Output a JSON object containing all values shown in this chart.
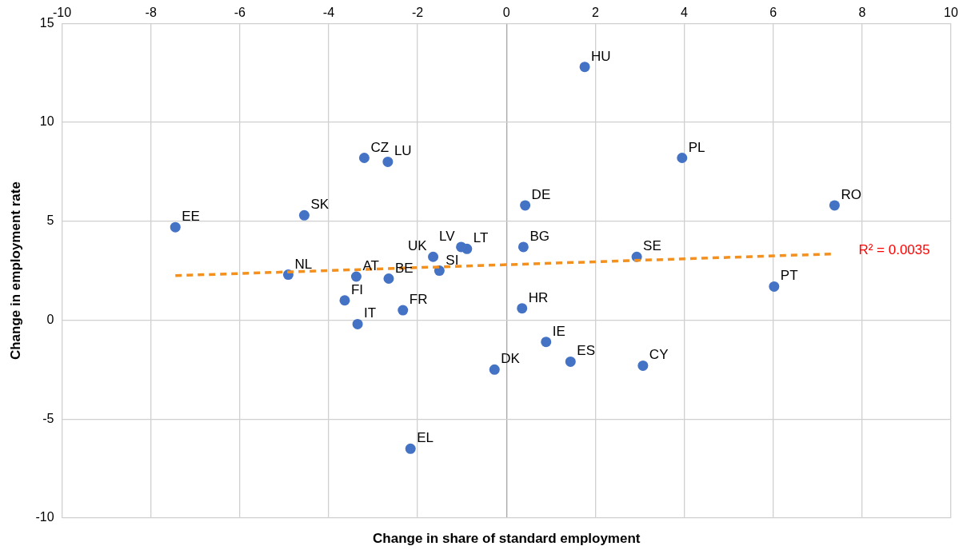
{
  "chart_data": {
    "type": "scatter",
    "xlabel": "Change in share of standard employment",
    "ylabel": "Change in employment rate",
    "xlim": [
      -10,
      10
    ],
    "xticks": [
      -10,
      -8,
      -6,
      -4,
      -2,
      0,
      2,
      4,
      6,
      8,
      10
    ],
    "ylim": [
      -10,
      15
    ],
    "yticks": [
      -10,
      -5,
      0,
      5,
      10,
      15
    ],
    "grid": true,
    "legend": false,
    "marker": "circle",
    "series": [
      {
        "type": "scatter",
        "color": "#4472c4",
        "x": [
          1.76,
          3.95,
          7.38,
          2.93,
          6.02,
          3.07,
          1.44,
          0.89,
          -0.27,
          0.35,
          0.38,
          0.42,
          -0.89,
          -1.02,
          -1.51,
          -1.65,
          -2.16,
          -2.33,
          -2.65,
          -2.67,
          -3.2,
          -3.38,
          -3.35,
          -3.64,
          -4.55,
          -4.91,
          -7.45
        ],
        "values": [
          12.8,
          8.2,
          5.8,
          3.2,
          1.7,
          -2.3,
          -2.1,
          -1.1,
          -2.5,
          0.6,
          3.7,
          5.8,
          3.6,
          3.7,
          2.5,
          3.2,
          -6.5,
          0.5,
          2.1,
          8.0,
          8.2,
          2.2,
          -0.2,
          1.0,
          5.3,
          2.3,
          4.7
        ]
      },
      {
        "type": "line",
        "color": "#f4901e",
        "line_style": "dashed",
        "marker": "none",
        "x": [
          -7.45,
          7.38
        ],
        "values": [
          2.25,
          3.35
        ]
      }
    ],
    "annotations": [
      {
        "text": "HU",
        "x": 1.76,
        "y": 12.8
      },
      {
        "text": "PL",
        "x": 3.95,
        "y": 8.2
      },
      {
        "text": "RO",
        "x": 7.38,
        "y": 5.8
      },
      {
        "text": "SE",
        "x": 2.93,
        "y": 3.2
      },
      {
        "text": "PT",
        "x": 6.02,
        "y": 1.7
      },
      {
        "text": "CY",
        "x": 3.07,
        "y": -2.3
      },
      {
        "text": "ES",
        "x": 1.44,
        "y": -2.1
      },
      {
        "text": "IE",
        "x": 0.89,
        "y": -1.1
      },
      {
        "text": "DK",
        "x": -0.27,
        "y": -2.5
      },
      {
        "text": "HR",
        "x": 0.35,
        "y": 0.6
      },
      {
        "text": "BG",
        "x": 0.38,
        "y": 3.7
      },
      {
        "text": "DE",
        "x": 0.42,
        "y": 5.8
      },
      {
        "text": "LT",
        "x": -0.89,
        "y": 3.6
      },
      {
        "text": "LV",
        "x": -1.02,
        "y": 3.7
      },
      {
        "text": "SI",
        "x": -1.51,
        "y": 2.5
      },
      {
        "text": "UK",
        "x": -1.65,
        "y": 3.2
      },
      {
        "text": "EL",
        "x": -2.16,
        "y": -6.5
      },
      {
        "text": "FR",
        "x": -2.33,
        "y": 0.5
      },
      {
        "text": "BE",
        "x": -2.65,
        "y": 2.1
      },
      {
        "text": "LU",
        "x": -2.67,
        "y": 8.0
      },
      {
        "text": "CZ",
        "x": -3.2,
        "y": 8.2
      },
      {
        "text": "AT",
        "x": -3.38,
        "y": 2.2
      },
      {
        "text": "IT",
        "x": -3.35,
        "y": -0.2
      },
      {
        "text": "FI",
        "x": -3.64,
        "y": 1.0
      },
      {
        "text": "SK",
        "x": -4.55,
        "y": 5.3
      },
      {
        "text": "NL",
        "x": -4.91,
        "y": 2.3
      },
      {
        "text": "EE",
        "x": -7.45,
        "y": 4.7
      },
      "R² = 0.0035"
    ]
  }
}
